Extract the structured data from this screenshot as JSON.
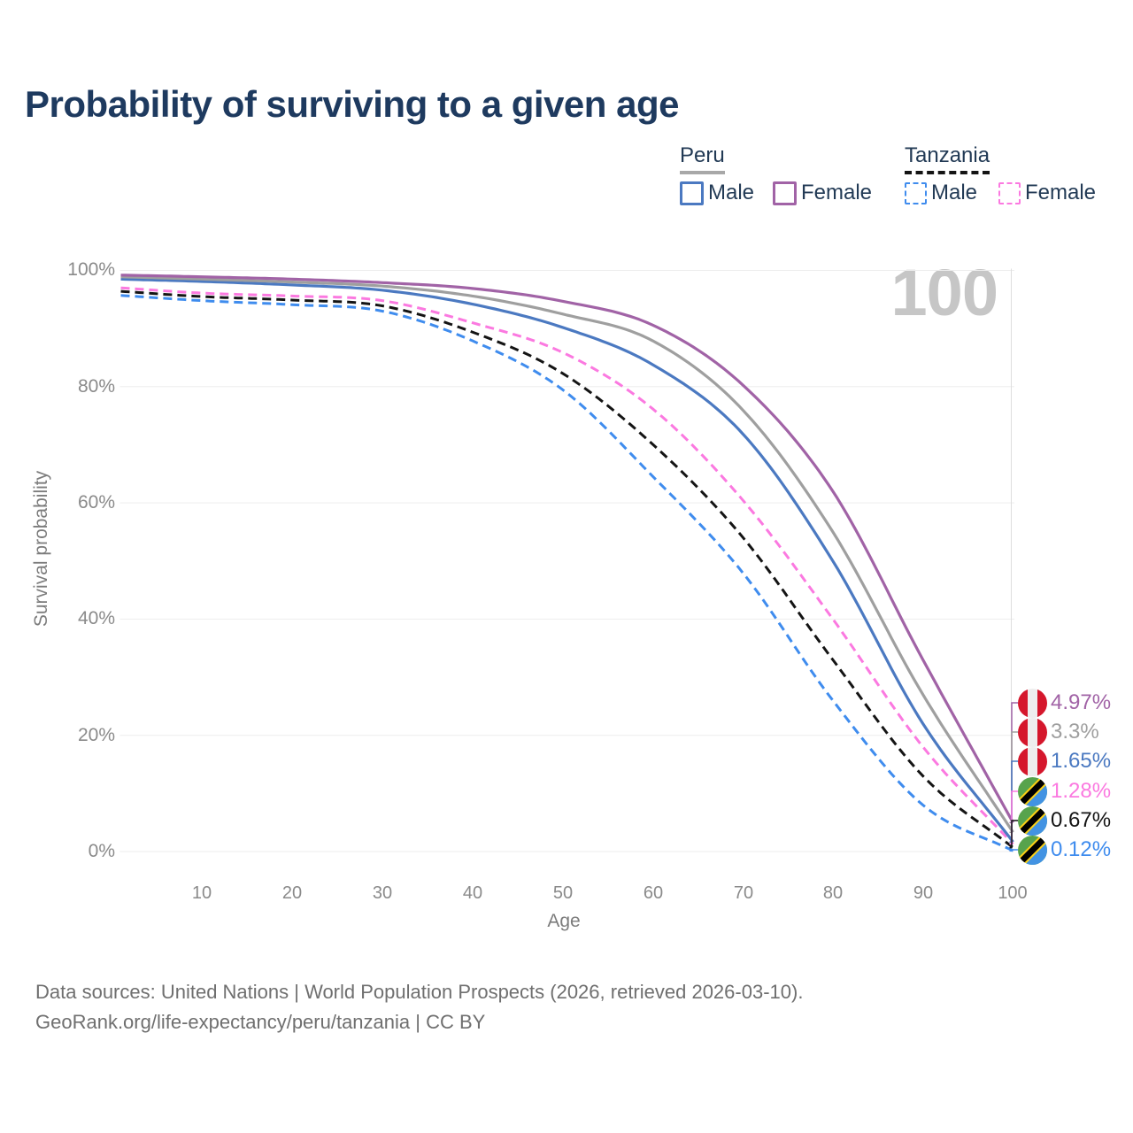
{
  "title": "Probability of surviving to a given age",
  "age_indicator": "100",
  "legend": {
    "peru": {
      "label": "Peru",
      "male": "Male",
      "female": "Female"
    },
    "tanzania": {
      "label": "Tanzania",
      "male": "Male",
      "female": "Female"
    }
  },
  "chart_data": {
    "type": "line",
    "title": "Probability of surviving to a given age",
    "xlabel": "Age",
    "ylabel": "Survival probability",
    "xlim": [
      1,
      100
    ],
    "ylim": [
      0,
      100
    ],
    "grid": "horizontal-only",
    "legend_position": "top-right",
    "x_ticks": [
      "10",
      "20",
      "30",
      "40",
      "50",
      "60",
      "70",
      "80",
      "90",
      "100"
    ],
    "y_ticks": [
      "100%",
      "80%",
      "60%",
      "40%",
      "20%",
      "0%"
    ],
    "y_grid_values": [
      100,
      80,
      60,
      40,
      20,
      0
    ],
    "ages": [
      1,
      10,
      20,
      30,
      40,
      50,
      60,
      70,
      80,
      90,
      100
    ],
    "series": [
      {
        "name": "Peru Female",
        "country": "Peru",
        "country_code": "peru",
        "sex": "Female",
        "style": "solid",
        "color": "#a163a6",
        "values": [
          99.2,
          98.9,
          98.5,
          97.9,
          96.9,
          94.7,
          90.6,
          80.3,
          62,
          33,
          4.97
        ],
        "end_label": "4.97%"
      },
      {
        "name": "Peru",
        "country": "Peru",
        "country_code": "peru",
        "sex": "Both",
        "style": "solid",
        "color": "#9f9f9f",
        "values": [
          98.9,
          98.5,
          98.0,
          97.3,
          95.6,
          92.5,
          87.9,
          76.0,
          55,
          27,
          3.3
        ],
        "end_label": "3.3%"
      },
      {
        "name": "Peru Male",
        "country": "Peru",
        "country_code": "peru",
        "sex": "Male",
        "style": "solid",
        "color": "#4b79c1",
        "values": [
          98.5,
          98.1,
          97.5,
          96.6,
          94.2,
          90.2,
          83.8,
          71.9,
          50,
          22,
          1.65
        ],
        "end_label": "1.65%"
      },
      {
        "name": "Tanzania Female",
        "country": "Tanzania",
        "country_code": "tanzania",
        "sex": "Female",
        "style": "dashed",
        "color": "#fb79e0",
        "values": [
          97.0,
          96.1,
          95.6,
          94.8,
          91.0,
          85.9,
          76.2,
          60.5,
          40,
          18,
          1.28
        ],
        "end_label": "1.28%"
      },
      {
        "name": "Tanzania",
        "country": "Tanzania",
        "country_code": "tanzania",
        "sex": "Both",
        "style": "dashed",
        "color": "#141414",
        "values": [
          96.4,
          95.5,
          94.9,
          93.9,
          89.4,
          82.3,
          70.1,
          54.1,
          33,
          13,
          0.67
        ],
        "end_label": "0.67%"
      },
      {
        "name": "Tanzania Male",
        "country": "Tanzania",
        "country_code": "tanzania",
        "sex": "Male",
        "style": "dashed",
        "color": "#3f8cee",
        "values": [
          95.7,
          94.8,
          94.1,
          93.0,
          87.9,
          79.5,
          64.6,
          48.0,
          26,
          8,
          0.12
        ],
        "end_label": "0.12%"
      }
    ]
  },
  "footer": {
    "line1": "Data sources: United Nations | World Population Prospects (2026, retrieved 2026-03-10).",
    "line2": "GeoRank.org/life-expectancy/peru/tanzania | CC BY"
  }
}
